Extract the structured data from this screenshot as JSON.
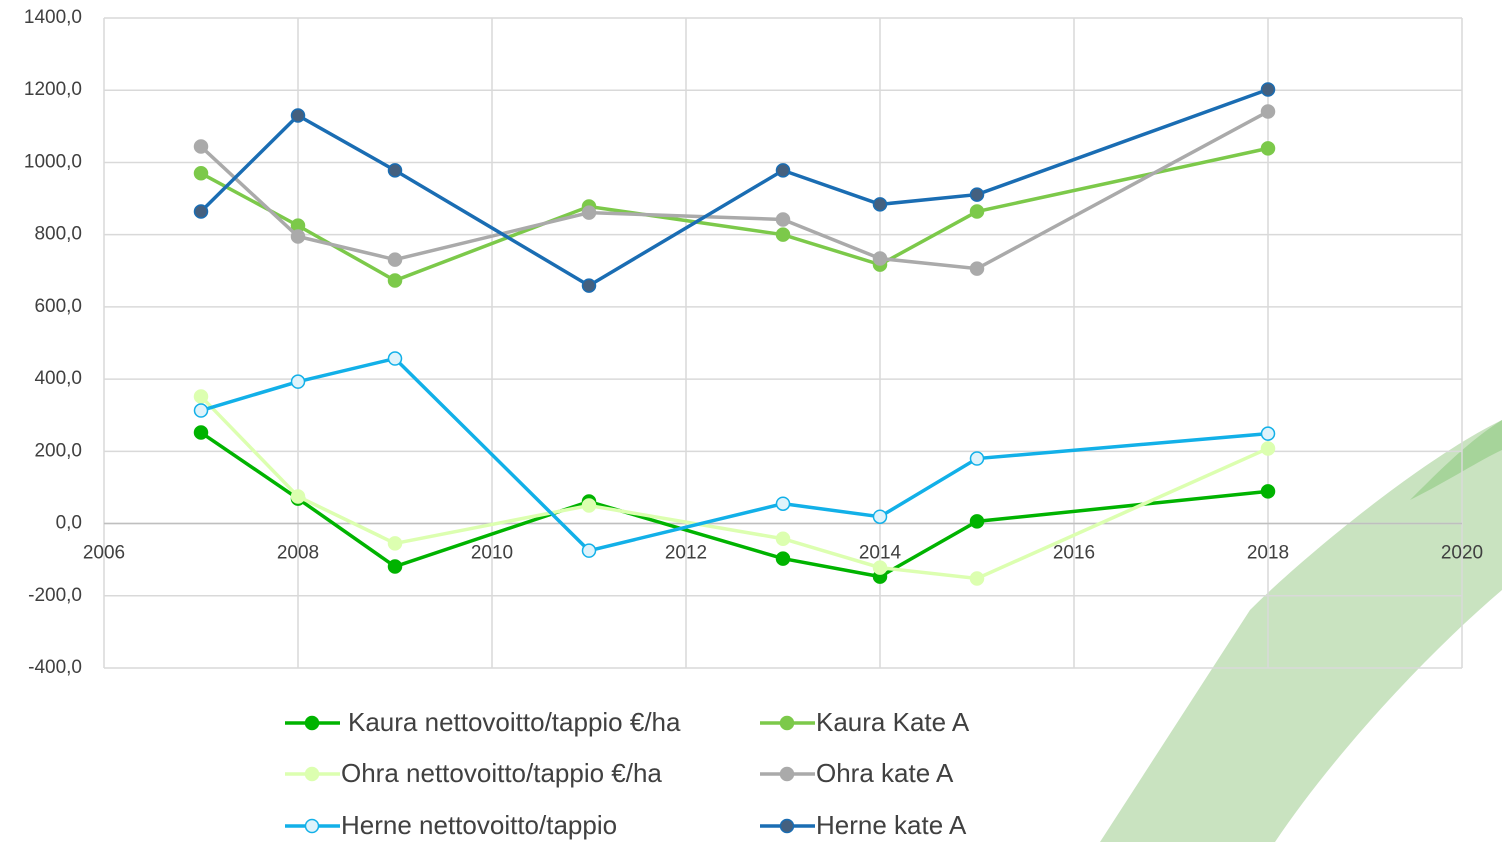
{
  "chart_data": {
    "type": "line",
    "x": [
      2007,
      2008,
      2009,
      2011,
      2013,
      2014,
      2015,
      2018
    ],
    "series": [
      {
        "name": "Kaura nettovoitto/tappio €/ha",
        "color": "#00b300",
        "marker_fill": "#00b300",
        "values": [
          252,
          69,
          -119,
          61,
          -97,
          -147,
          6,
          89
        ]
      },
      {
        "name": "Kaura Kate A",
        "color": "#7cc94a",
        "marker_fill": "#7cc94a",
        "values": [
          970,
          825,
          673,
          878,
          800,
          717,
          864,
          1039
        ]
      },
      {
        "name": "Ohra nettovoitto/tappio €/ha",
        "color": "#dcffb0",
        "marker_fill": "#dcffb0",
        "values": [
          352,
          75,
          -55,
          50,
          -42,
          -122,
          -152,
          208
        ]
      },
      {
        "name": "Ohra kate A",
        "color": "#aaaaaa",
        "marker_fill": "#aaaaaa",
        "values": [
          1044,
          795,
          731,
          861,
          842,
          734,
          706,
          1141
        ]
      },
      {
        "name": "Herne nettovoitto/tappio",
        "color": "#12b0e8",
        "marker_fill": "#dff3fb",
        "values": [
          313,
          393,
          457,
          -75,
          55,
          19,
          180,
          249
        ]
      },
      {
        "name": "Herne kate A",
        "color": "#1a6db3",
        "marker_fill": "#44607f",
        "values": [
          864,
          1130,
          978,
          659,
          978,
          884,
          911,
          1202
        ]
      }
    ],
    "xlim": [
      2006,
      2020
    ],
    "xticks": [
      2006,
      2008,
      2010,
      2012,
      2014,
      2016,
      2018,
      2020
    ],
    "ylim": [
      -400,
      1400
    ],
    "yticks": [
      {
        "value": -400,
        "label": "-400,0"
      },
      {
        "value": -200,
        "label": "-200,0"
      },
      {
        "value": 0,
        "label": "0,0"
      },
      {
        "value": 200,
        "label": "200,0"
      },
      {
        "value": 400,
        "label": "400,0"
      },
      {
        "value": 600,
        "label": "600,0"
      },
      {
        "value": 800,
        "label": "800,0"
      },
      {
        "value": 1000,
        "label": "1000,0"
      },
      {
        "value": 1200,
        "label": "1200,0"
      },
      {
        "value": 1400,
        "label": "1400,0"
      }
    ],
    "grid": true,
    "legend": "bottom"
  }
}
